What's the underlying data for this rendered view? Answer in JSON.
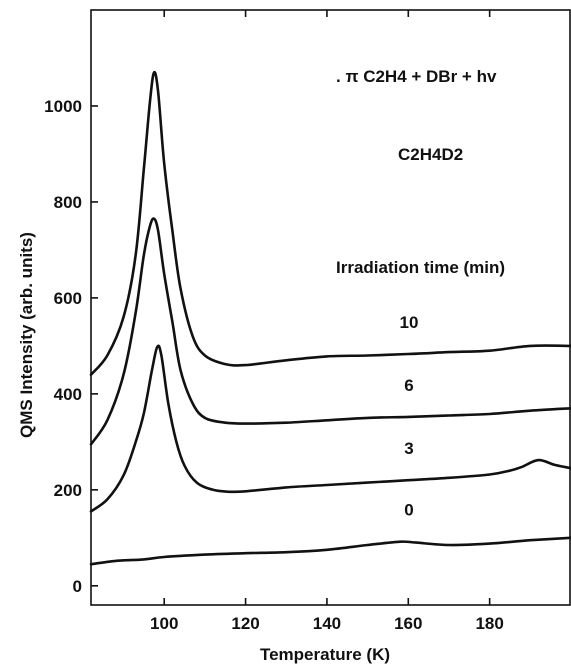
{
  "chart_data": {
    "type": "line",
    "title": "",
    "xlabel": "Temperature (K)",
    "ylabel": "QMS Intensity (arb. units)",
    "xlim": [
      82,
      200
    ],
    "ylim": [
      -40,
      1200
    ],
    "xticks": [
      100,
      120,
      140,
      160,
      180
    ],
    "yticks": [
      0,
      200,
      400,
      600,
      800,
      1000
    ],
    "grid": false,
    "legend": "none",
    "annotations": {
      "reaction": "π C2H4 + DBr + hv",
      "species": "C2H4D2",
      "legend_title": "Irradiation time (min)"
    },
    "series": [
      {
        "name": "10",
        "x": [
          82,
          86,
          90,
          93,
          95,
          96.5,
          97.5,
          98.5,
          100,
          102,
          104,
          107,
          110,
          115,
          120,
          130,
          140,
          150,
          160,
          170,
          180,
          190,
          200
        ],
        "y": [
          440,
          480,
          560,
          690,
          870,
          1010,
          1070,
          1030,
          880,
          740,
          620,
          520,
          480,
          462,
          460,
          470,
          478,
          480,
          483,
          487,
          490,
          500,
          500
        ]
      },
      {
        "name": "6",
        "x": [
          82,
          86,
          90,
          93,
          95,
          96.5,
          97.5,
          98.5,
          100,
          102,
          104,
          107,
          110,
          115,
          120,
          130,
          140,
          150,
          160,
          170,
          180,
          190,
          200
        ],
        "y": [
          295,
          345,
          440,
          570,
          690,
          750,
          765,
          740,
          650,
          550,
          450,
          380,
          350,
          340,
          338,
          340,
          345,
          350,
          352,
          355,
          358,
          365,
          370
        ]
      },
      {
        "name": "3",
        "x": [
          82,
          86,
          90,
          93,
          95,
          97,
          98.3,
          99.3,
          101,
          103,
          105,
          108,
          112,
          116,
          120,
          130,
          140,
          150,
          160,
          170,
          180,
          185,
          188,
          192,
          196,
          200
        ],
        "y": [
          155,
          180,
          230,
          300,
          360,
          450,
          498,
          480,
          380,
          300,
          250,
          215,
          200,
          196,
          197,
          205,
          210,
          215,
          220,
          225,
          232,
          240,
          248,
          262,
          252,
          245
        ]
      },
      {
        "name": "0",
        "x": [
          82,
          88,
          95,
          100,
          110,
          120,
          130,
          140,
          150,
          158,
          162,
          170,
          180,
          190,
          200
        ],
        "y": [
          45,
          52,
          55,
          60,
          65,
          68,
          70,
          75,
          85,
          92,
          90,
          85,
          88,
          95,
          100
        ]
      }
    ]
  }
}
